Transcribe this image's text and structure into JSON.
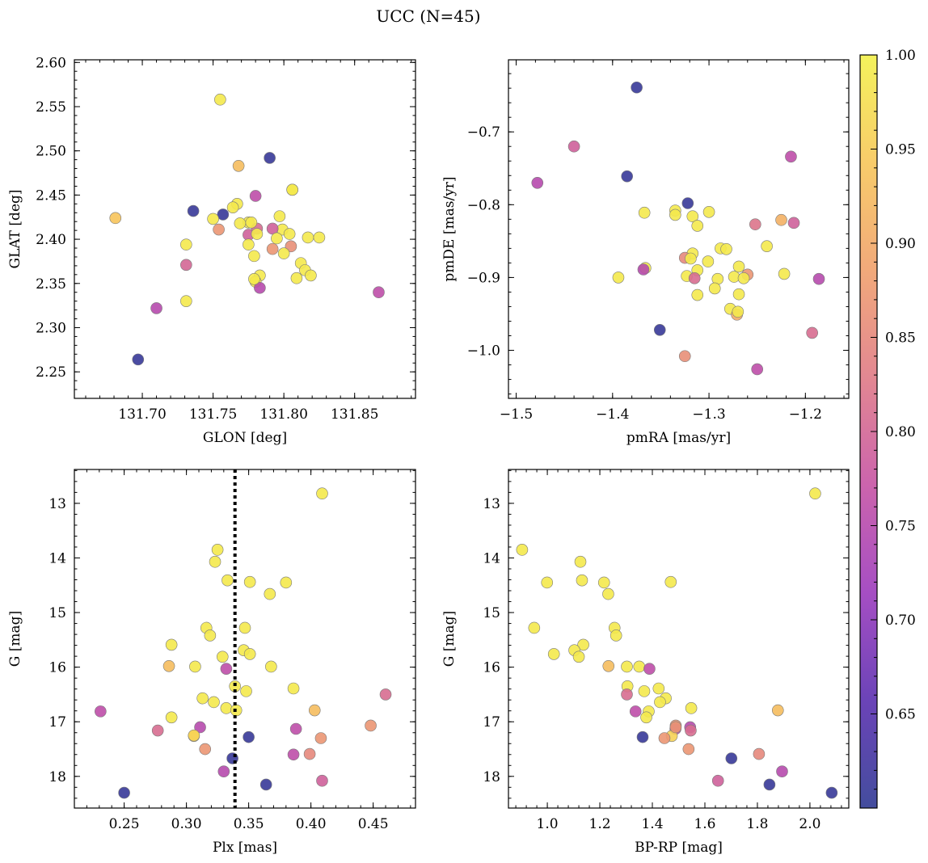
{
  "title": "UCC (N=45)",
  "colormap": {
    "name": "plasma",
    "stops": [
      "#2f3a93",
      "#5b2fb0",
      "#9c3bbd",
      "#c653a4",
      "#df7a86",
      "#f0a06c",
      "#f7c65a",
      "#f3f14a"
    ],
    "range": [
      0.6,
      1.0
    ],
    "ticks": [
      0.65,
      0.7,
      0.75,
      0.8,
      0.85,
      0.9,
      0.95,
      1.0
    ],
    "tick_labels": [
      "0.65",
      "0.70",
      "0.75",
      "0.80",
      "0.85",
      "0.90",
      "0.95",
      "1.00"
    ]
  },
  "chart_data": [
    {
      "type": "scatter",
      "xlabel": "GLON [deg]",
      "ylabel": "GLAT [deg]",
      "xlim": [
        131.652,
        131.893
      ],
      "ylim": [
        2.22,
        2.603
      ],
      "invert_y": false,
      "xticks": [
        131.7,
        131.75,
        131.8,
        131.85
      ],
      "xtick_labels": [
        "131.70",
        "131.75",
        "131.80",
        "131.85"
      ],
      "yticks": [
        2.25,
        2.3,
        2.35,
        2.4,
        2.45,
        2.5,
        2.55,
        2.6
      ],
      "ytick_labels": [
        "2.25",
        "2.30",
        "2.35",
        "2.40",
        "2.45",
        "2.50",
        "2.55",
        "2.60"
      ],
      "points": [
        {
          "x": 131.755,
          "y": 2.558,
          "c": 0.99
        },
        {
          "x": 131.79,
          "y": 2.492,
          "c": 0.61
        },
        {
          "x": 131.768,
          "y": 2.483,
          "c": 0.93
        },
        {
          "x": 131.806,
          "y": 2.456,
          "c": 0.99
        },
        {
          "x": 131.78,
          "y": 2.449,
          "c": 0.76
        },
        {
          "x": 131.767,
          "y": 2.44,
          "c": 0.99
        },
        {
          "x": 131.764,
          "y": 2.436,
          "c": 0.99
        },
        {
          "x": 131.736,
          "y": 2.432,
          "c": 0.61
        },
        {
          "x": 131.757,
          "y": 2.428,
          "c": 0.61
        },
        {
          "x": 131.797,
          "y": 2.426,
          "c": 0.99
        },
        {
          "x": 131.75,
          "y": 2.423,
          "c": 0.99
        },
        {
          "x": 131.681,
          "y": 2.424,
          "c": 0.94
        },
        {
          "x": 131.775,
          "y": 2.419,
          "c": 0.99
        },
        {
          "x": 131.769,
          "y": 2.418,
          "c": 0.99
        },
        {
          "x": 131.754,
          "y": 2.411,
          "c": 0.87
        },
        {
          "x": 131.781,
          "y": 2.412,
          "c": 0.81
        },
        {
          "x": 131.799,
          "y": 2.411,
          "c": 0.99
        },
        {
          "x": 131.792,
          "y": 2.412,
          "c": 0.79
        },
        {
          "x": 131.804,
          "y": 2.406,
          "c": 0.99
        },
        {
          "x": 131.775,
          "y": 2.405,
          "c": 0.79
        },
        {
          "x": 131.781,
          "y": 2.406,
          "c": 0.99
        },
        {
          "x": 131.795,
          "y": 2.401,
          "c": 0.99
        },
        {
          "x": 131.817,
          "y": 2.402,
          "c": 0.99
        },
        {
          "x": 131.825,
          "y": 2.402,
          "c": 0.99
        },
        {
          "x": 131.775,
          "y": 2.394,
          "c": 0.99
        },
        {
          "x": 131.731,
          "y": 2.394,
          "c": 0.99
        },
        {
          "x": 131.805,
          "y": 2.392,
          "c": 0.86
        },
        {
          "x": 131.792,
          "y": 2.389,
          "c": 0.87
        },
        {
          "x": 131.8,
          "y": 2.384,
          "c": 0.99
        },
        {
          "x": 131.779,
          "y": 2.381,
          "c": 0.99
        },
        {
          "x": 131.812,
          "y": 2.373,
          "c": 0.99
        },
        {
          "x": 131.731,
          "y": 2.371,
          "c": 0.8
        },
        {
          "x": 131.815,
          "y": 2.365,
          "c": 0.99
        },
        {
          "x": 131.783,
          "y": 2.359,
          "c": 0.99
        },
        {
          "x": 131.819,
          "y": 2.359,
          "c": 0.99
        },
        {
          "x": 131.809,
          "y": 2.356,
          "c": 0.99
        },
        {
          "x": 131.78,
          "y": 2.352,
          "c": 0.99
        },
        {
          "x": 131.783,
          "y": 2.345,
          "c": 0.75
        },
        {
          "x": 131.867,
          "y": 2.34,
          "c": 0.76
        },
        {
          "x": 131.731,
          "y": 2.33,
          "c": 0.99
        },
        {
          "x": 131.71,
          "y": 2.322,
          "c": 0.75
        },
        {
          "x": 131.697,
          "y": 2.264,
          "c": 0.61
        },
        {
          "x": 131.806,
          "y": 2.456,
          "c": 0.99
        },
        {
          "x": 131.777,
          "y": 2.419,
          "c": 0.99
        },
        {
          "x": 131.779,
          "y": 2.355,
          "c": 0.99
        }
      ]
    },
    {
      "type": "scatter",
      "xlabel": "pmRA [mas/yr]",
      "ylabel": "pmDE [mas/yr]",
      "xlim": [
        -1.508,
        -1.155
      ],
      "ylim": [
        -1.066,
        -0.601
      ],
      "invert_y": false,
      "xticks": [
        -1.5,
        -1.4,
        -1.3,
        -1.2
      ],
      "xtick_labels": [
        "−1.5",
        "−1.4",
        "−1.3",
        "−1.2"
      ],
      "yticks": [
        -1.0,
        -0.9,
        -0.8,
        -0.7
      ],
      "ytick_labels": [
        "−1.0",
        "−0.9",
        "−0.8",
        "−0.7"
      ],
      "points": [
        {
          "x": -1.375,
          "y": -0.639,
          "c": 0.61
        },
        {
          "x": -1.44,
          "y": -0.72,
          "c": 0.79
        },
        {
          "x": -1.215,
          "y": -0.734,
          "c": 0.76
        },
        {
          "x": -1.385,
          "y": -0.761,
          "c": 0.61
        },
        {
          "x": -1.478,
          "y": -0.77,
          "c": 0.75
        },
        {
          "x": -1.322,
          "y": -0.798,
          "c": 0.61
        },
        {
          "x": -1.335,
          "y": -0.808,
          "c": 0.99
        },
        {
          "x": -1.3,
          "y": -0.81,
          "c": 0.99
        },
        {
          "x": -1.367,
          "y": -0.811,
          "c": 0.99
        },
        {
          "x": -1.335,
          "y": -0.814,
          "c": 0.99
        },
        {
          "x": -1.317,
          "y": -0.816,
          "c": 0.99
        },
        {
          "x": -1.225,
          "y": -0.821,
          "c": 0.91
        },
        {
          "x": -1.212,
          "y": -0.825,
          "c": 0.79
        },
        {
          "x": -1.252,
          "y": -0.827,
          "c": 0.82
        },
        {
          "x": -1.312,
          "y": -0.829,
          "c": 0.99
        },
        {
          "x": -1.24,
          "y": -0.857,
          "c": 0.99
        },
        {
          "x": -1.288,
          "y": -0.86,
          "c": 0.99
        },
        {
          "x": -1.282,
          "y": -0.861,
          "c": 0.99
        },
        {
          "x": -1.317,
          "y": -0.867,
          "c": 0.99
        },
        {
          "x": -1.325,
          "y": -0.873,
          "c": 0.85
        },
        {
          "x": -1.319,
          "y": -0.874,
          "c": 0.99
        },
        {
          "x": -1.301,
          "y": -0.878,
          "c": 0.99
        },
        {
          "x": -1.269,
          "y": -0.885,
          "c": 0.99
        },
        {
          "x": -1.366,
          "y": -0.887,
          "c": 0.99
        },
        {
          "x": -1.368,
          "y": -0.889,
          "c": 0.75
        },
        {
          "x": -1.312,
          "y": -0.89,
          "c": 0.99
        },
        {
          "x": -1.26,
          "y": -0.896,
          "c": 0.87
        },
        {
          "x": -1.222,
          "y": -0.895,
          "c": 0.99
        },
        {
          "x": -1.323,
          "y": -0.898,
          "c": 0.99
        },
        {
          "x": -1.274,
          "y": -0.899,
          "c": 0.99
        },
        {
          "x": -1.394,
          "y": -0.9,
          "c": 0.99
        },
        {
          "x": -1.186,
          "y": -0.902,
          "c": 0.75
        },
        {
          "x": -1.315,
          "y": -0.901,
          "c": 0.81
        },
        {
          "x": -1.291,
          "y": -0.902,
          "c": 0.99
        },
        {
          "x": -1.264,
          "y": -0.901,
          "c": 0.99
        },
        {
          "x": -1.294,
          "y": -0.915,
          "c": 0.99
        },
        {
          "x": -1.312,
          "y": -0.924,
          "c": 0.99
        },
        {
          "x": -1.269,
          "y": -0.923,
          "c": 0.99
        },
        {
          "x": -1.278,
          "y": -0.943,
          "c": 0.99
        },
        {
          "x": -1.271,
          "y": -0.951,
          "c": 0.9
        },
        {
          "x": -1.27,
          "y": -0.947,
          "c": 0.99
        },
        {
          "x": -1.351,
          "y": -0.972,
          "c": 0.61
        },
        {
          "x": -1.193,
          "y": -0.976,
          "c": 0.81
        },
        {
          "x": -1.325,
          "y": -1.008,
          "c": 0.86
        },
        {
          "x": -1.25,
          "y": -1.026,
          "c": 0.76
        }
      ]
    },
    {
      "type": "scatter",
      "xlabel": "Plx [mas]",
      "ylabel": "G [mag]",
      "xlim": [
        0.21,
        0.484
      ],
      "ylim": [
        18.58,
        12.38
      ],
      "invert_y": true,
      "vline": {
        "x": 0.339,
        "style": "dotted",
        "color": "#000000"
      },
      "xticks": [
        0.25,
        0.3,
        0.35,
        0.4,
        0.45
      ],
      "xtick_labels": [
        "0.25",
        "0.30",
        "0.35",
        "0.40",
        "0.45"
      ],
      "yticks": [
        13,
        14,
        15,
        16,
        17,
        18
      ],
      "ytick_labels": [
        "13",
        "14",
        "15",
        "16",
        "17",
        "18"
      ],
      "points": [
        {
          "x": 0.409,
          "y": 12.82,
          "c": 0.99
        },
        {
          "x": 0.325,
          "y": 13.85,
          "c": 0.99
        },
        {
          "x": 0.323,
          "y": 14.07,
          "c": 0.99
        },
        {
          "x": 0.333,
          "y": 14.41,
          "c": 0.99
        },
        {
          "x": 0.351,
          "y": 14.44,
          "c": 0.99
        },
        {
          "x": 0.38,
          "y": 14.45,
          "c": 0.99
        },
        {
          "x": 0.367,
          "y": 14.66,
          "c": 0.99
        },
        {
          "x": 0.316,
          "y": 15.28,
          "c": 0.99
        },
        {
          "x": 0.347,
          "y": 15.28,
          "c": 0.99
        },
        {
          "x": 0.319,
          "y": 15.42,
          "c": 0.99
        },
        {
          "x": 0.288,
          "y": 15.59,
          "c": 0.99
        },
        {
          "x": 0.346,
          "y": 15.69,
          "c": 0.99
        },
        {
          "x": 0.351,
          "y": 15.76,
          "c": 0.99
        },
        {
          "x": 0.329,
          "y": 15.81,
          "c": 0.99
        },
        {
          "x": 0.286,
          "y": 15.98,
          "c": 0.93
        },
        {
          "x": 0.307,
          "y": 15.99,
          "c": 0.99
        },
        {
          "x": 0.368,
          "y": 15.99,
          "c": 0.99
        },
        {
          "x": 0.332,
          "y": 16.03,
          "c": 0.76
        },
        {
          "x": 0.339,
          "y": 16.35,
          "c": 0.99
        },
        {
          "x": 0.386,
          "y": 16.39,
          "c": 0.99
        },
        {
          "x": 0.348,
          "y": 16.44,
          "c": 0.99
        },
        {
          "x": 0.46,
          "y": 16.5,
          "c": 0.81
        },
        {
          "x": 0.313,
          "y": 16.57,
          "c": 0.99
        },
        {
          "x": 0.322,
          "y": 16.64,
          "c": 0.99
        },
        {
          "x": 0.332,
          "y": 16.75,
          "c": 0.99
        },
        {
          "x": 0.34,
          "y": 16.79,
          "c": 0.99
        },
        {
          "x": 0.403,
          "y": 16.79,
          "c": 0.93
        },
        {
          "x": 0.231,
          "y": 16.81,
          "c": 0.76
        },
        {
          "x": 0.288,
          "y": 16.92,
          "c": 0.99
        },
        {
          "x": 0.448,
          "y": 17.07,
          "c": 0.87
        },
        {
          "x": 0.311,
          "y": 17.1,
          "c": 0.75
        },
        {
          "x": 0.388,
          "y": 17.13,
          "c": 0.76
        },
        {
          "x": 0.277,
          "y": 17.16,
          "c": 0.81
        },
        {
          "x": 0.306,
          "y": 17.26,
          "c": 0.96
        },
        {
          "x": 0.35,
          "y": 17.28,
          "c": 0.61
        },
        {
          "x": 0.408,
          "y": 17.3,
          "c": 0.87
        },
        {
          "x": 0.315,
          "y": 17.5,
          "c": 0.87
        },
        {
          "x": 0.386,
          "y": 17.6,
          "c": 0.76
        },
        {
          "x": 0.399,
          "y": 17.59,
          "c": 0.85
        },
        {
          "x": 0.337,
          "y": 17.67,
          "c": 0.61
        },
        {
          "x": 0.33,
          "y": 17.91,
          "c": 0.75
        },
        {
          "x": 0.409,
          "y": 18.08,
          "c": 0.79
        },
        {
          "x": 0.364,
          "y": 18.15,
          "c": 0.61
        },
        {
          "x": 0.25,
          "y": 18.3,
          "c": 0.61
        },
        {
          "x": 0.306,
          "y": 17.25,
          "c": 0.96
        }
      ]
    },
    {
      "type": "scatter",
      "xlabel": "BP-RP [mag]",
      "ylabel": "G [mag]",
      "xlim": [
        0.852,
        2.148
      ],
      "ylim": [
        18.58,
        12.38
      ],
      "invert_y": true,
      "xticks": [
        1.0,
        1.2,
        1.4,
        1.6,
        1.8,
        2.0
      ],
      "xtick_labels": [
        "1.0",
        "1.2",
        "1.4",
        "1.6",
        "1.8",
        "2.0"
      ],
      "yticks": [
        13,
        14,
        15,
        16,
        17,
        18
      ],
      "ytick_labels": [
        "13",
        "14",
        "15",
        "16",
        "17",
        "18"
      ],
      "points": [
        {
          "x": 2.02,
          "y": 12.82,
          "c": 0.99
        },
        {
          "x": 0.904,
          "y": 13.85,
          "c": 0.99
        },
        {
          "x": 1.126,
          "y": 14.07,
          "c": 0.99
        },
        {
          "x": 0.999,
          "y": 14.45,
          "c": 0.99
        },
        {
          "x": 1.132,
          "y": 14.41,
          "c": 0.99
        },
        {
          "x": 1.216,
          "y": 14.45,
          "c": 0.99
        },
        {
          "x": 1.47,
          "y": 14.44,
          "c": 0.99
        },
        {
          "x": 1.232,
          "y": 14.66,
          "c": 0.99
        },
        {
          "x": 0.95,
          "y": 15.28,
          "c": 0.99
        },
        {
          "x": 1.256,
          "y": 15.28,
          "c": 0.99
        },
        {
          "x": 1.262,
          "y": 15.42,
          "c": 0.99
        },
        {
          "x": 1.137,
          "y": 15.59,
          "c": 0.99
        },
        {
          "x": 1.103,
          "y": 15.69,
          "c": 0.99
        },
        {
          "x": 1.025,
          "y": 15.76,
          "c": 0.99
        },
        {
          "x": 1.12,
          "y": 15.81,
          "c": 0.99
        },
        {
          "x": 1.233,
          "y": 15.98,
          "c": 0.93
        },
        {
          "x": 1.303,
          "y": 15.99,
          "c": 0.99
        },
        {
          "x": 1.35,
          "y": 15.99,
          "c": 0.99
        },
        {
          "x": 1.389,
          "y": 16.03,
          "c": 0.76
        },
        {
          "x": 1.305,
          "y": 16.35,
          "c": 0.99
        },
        {
          "x": 1.424,
          "y": 16.39,
          "c": 0.99
        },
        {
          "x": 1.369,
          "y": 16.44,
          "c": 0.99
        },
        {
          "x": 1.303,
          "y": 16.5,
          "c": 0.81
        },
        {
          "x": 1.451,
          "y": 16.57,
          "c": 0.99
        },
        {
          "x": 1.429,
          "y": 16.64,
          "c": 0.99
        },
        {
          "x": 1.548,
          "y": 16.75,
          "c": 0.99
        },
        {
          "x": 1.386,
          "y": 16.81,
          "c": 0.99
        },
        {
          "x": 1.336,
          "y": 16.81,
          "c": 0.76
        },
        {
          "x": 1.878,
          "y": 16.79,
          "c": 0.93
        },
        {
          "x": 1.377,
          "y": 16.92,
          "c": 0.99
        },
        {
          "x": 1.489,
          "y": 17.07,
          "c": 0.87
        },
        {
          "x": 1.544,
          "y": 17.1,
          "c": 0.75
        },
        {
          "x": 1.488,
          "y": 17.13,
          "c": 0.76
        },
        {
          "x": 1.546,
          "y": 17.16,
          "c": 0.81
        },
        {
          "x": 1.474,
          "y": 17.26,
          "c": 0.96
        },
        {
          "x": 1.363,
          "y": 17.28,
          "c": 0.61
        },
        {
          "x": 1.446,
          "y": 17.3,
          "c": 0.87
        },
        {
          "x": 1.538,
          "y": 17.5,
          "c": 0.87
        },
        {
          "x": 1.806,
          "y": 17.59,
          "c": 0.85
        },
        {
          "x": 1.701,
          "y": 17.67,
          "c": 0.61
        },
        {
          "x": 1.894,
          "y": 17.91,
          "c": 0.75
        },
        {
          "x": 1.65,
          "y": 18.08,
          "c": 0.79
        },
        {
          "x": 1.846,
          "y": 18.15,
          "c": 0.61
        },
        {
          "x": 2.083,
          "y": 18.3,
          "c": 0.61
        },
        {
          "x": 1.489,
          "y": 17.1,
          "c": 0.87
        }
      ]
    }
  ]
}
